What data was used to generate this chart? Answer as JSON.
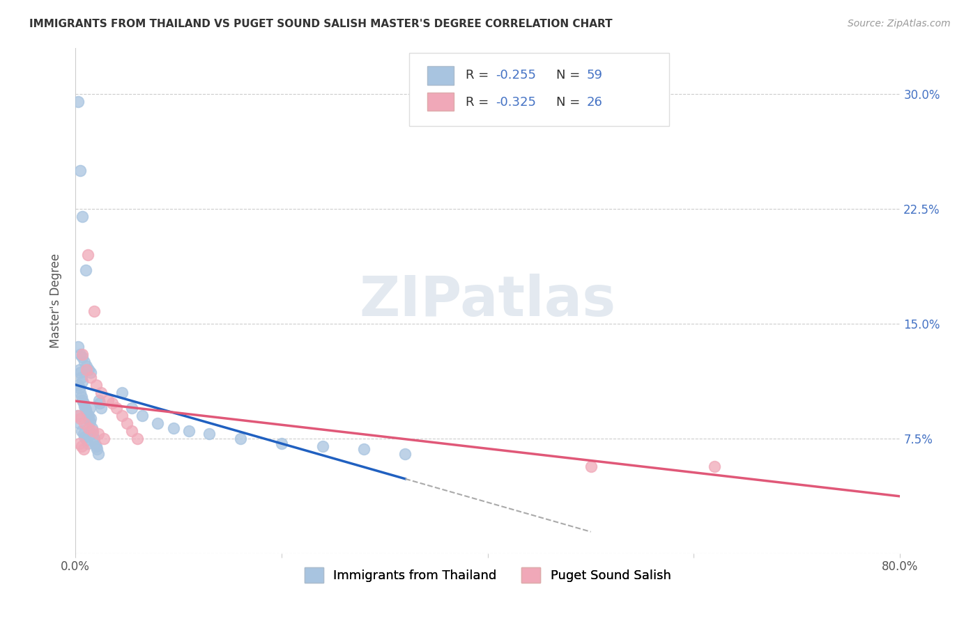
{
  "title": "IMMIGRANTS FROM THAILAND VS PUGET SOUND SALISH MASTER'S DEGREE CORRELATION CHART",
  "source": "Source: ZipAtlas.com",
  "ylabel": "Master's Degree",
  "xmin": 0.0,
  "xmax": 0.8,
  "ymin": 0.0,
  "ymax": 0.33,
  "yticks": [
    0.0,
    0.075,
    0.15,
    0.225,
    0.3
  ],
  "ytick_labels": [
    "",
    "7.5%",
    "15.0%",
    "22.5%",
    "30.0%"
  ],
  "blue_R": -0.255,
  "blue_N": 59,
  "pink_R": -0.325,
  "pink_N": 26,
  "blue_color": "#a8c4e0",
  "pink_color": "#f0a8b8",
  "blue_line_color": "#2060c0",
  "pink_line_color": "#e05878",
  "blue_scatter_x": [
    0.003,
    0.005,
    0.007,
    0.01,
    0.002,
    0.004,
    0.006,
    0.008,
    0.009,
    0.011,
    0.012,
    0.013,
    0.014,
    0.015,
    0.016,
    0.017,
    0.018,
    0.019,
    0.02,
    0.021,
    0.022,
    0.023,
    0.024,
    0.025,
    0.003,
    0.004,
    0.005,
    0.006,
    0.007,
    0.008,
    0.009,
    0.01,
    0.011,
    0.012,
    0.013,
    0.014,
    0.004,
    0.005,
    0.006,
    0.007,
    0.045,
    0.055,
    0.065,
    0.08,
    0.095,
    0.11,
    0.13,
    0.16,
    0.2,
    0.24,
    0.28,
    0.32,
    0.003,
    0.005,
    0.007,
    0.009,
    0.011,
    0.013,
    0.015
  ],
  "blue_scatter_y": [
    0.295,
    0.25,
    0.22,
    0.185,
    0.09,
    0.085,
    0.08,
    0.078,
    0.076,
    0.074,
    0.072,
    0.09,
    0.095,
    0.088,
    0.082,
    0.078,
    0.075,
    0.072,
    0.07,
    0.068,
    0.065,
    0.1,
    0.098,
    0.095,
    0.11,
    0.108,
    0.105,
    0.102,
    0.1,
    0.098,
    0.096,
    0.094,
    0.092,
    0.09,
    0.088,
    0.086,
    0.12,
    0.118,
    0.115,
    0.112,
    0.105,
    0.095,
    0.09,
    0.085,
    0.082,
    0.08,
    0.078,
    0.075,
    0.072,
    0.07,
    0.068,
    0.065,
    0.135,
    0.13,
    0.128,
    0.125,
    0.122,
    0.12,
    0.118
  ],
  "pink_scatter_x": [
    0.012,
    0.018,
    0.003,
    0.005,
    0.007,
    0.009,
    0.011,
    0.013,
    0.015,
    0.017,
    0.02,
    0.022,
    0.025,
    0.028,
    0.032,
    0.036,
    0.04,
    0.045,
    0.05,
    0.055,
    0.06,
    0.004,
    0.006,
    0.008,
    0.5,
    0.62
  ],
  "pink_scatter_y": [
    0.195,
    0.158,
    0.09,
    0.088,
    0.13,
    0.085,
    0.12,
    0.082,
    0.115,
    0.08,
    0.11,
    0.078,
    0.105,
    0.075,
    0.1,
    0.098,
    0.095,
    0.09,
    0.085,
    0.08,
    0.075,
    0.072,
    0.07,
    0.068,
    0.057,
    0.057
  ]
}
